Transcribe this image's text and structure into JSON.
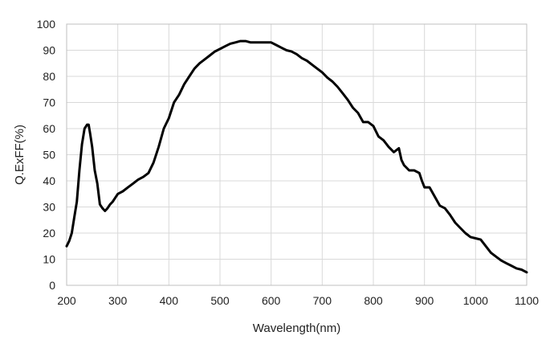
{
  "chart_data": {
    "type": "line",
    "title": "",
    "xlabel": "Wavelength(nm)",
    "ylabel": "Q.ExFF(%)",
    "xlim": [
      200,
      1100
    ],
    "ylim": [
      0,
      100
    ],
    "x_ticks": [
      200,
      300,
      400,
      500,
      600,
      700,
      800,
      900,
      1000,
      1100
    ],
    "y_ticks": [
      0,
      10,
      20,
      30,
      40,
      50,
      60,
      70,
      80,
      90,
      100
    ],
    "grid": true,
    "legend": "none",
    "series": [
      {
        "color": "#000000",
        "x": [
          200,
          205,
          210,
          215,
          220,
          225,
          230,
          235,
          240,
          243,
          246,
          250,
          255,
          260,
          265,
          270,
          275,
          280,
          285,
          290,
          300,
          310,
          320,
          330,
          340,
          350,
          360,
          370,
          380,
          390,
          400,
          410,
          420,
          430,
          440,
          450,
          460,
          470,
          480,
          490,
          500,
          510,
          520,
          530,
          540,
          550,
          560,
          570,
          580,
          590,
          600,
          610,
          620,
          630,
          640,
          650,
          660,
          670,
          680,
          690,
          700,
          710,
          720,
          730,
          740,
          750,
          760,
          770,
          780,
          790,
          800,
          810,
          820,
          830,
          840,
          850,
          855,
          860,
          870,
          880,
          890,
          895,
          900,
          910,
          920,
          930,
          940,
          950,
          960,
          970,
          980,
          990,
          1000,
          1010,
          1020,
          1030,
          1040,
          1050,
          1060,
          1070,
          1080,
          1090,
          1100
        ],
        "y": [
          15,
          17,
          20,
          26,
          32,
          44,
          54,
          60,
          61.5,
          61.5,
          58,
          53,
          44,
          39,
          31,
          29.5,
          28.5,
          29.5,
          31,
          32,
          35,
          36,
          37.5,
          39,
          40.5,
          41.5,
          43,
          47,
          53,
          60,
          64,
          70,
          73,
          77,
          80,
          83,
          85,
          86.5,
          88,
          89.5,
          90.5,
          91.5,
          92.5,
          93,
          93.5,
          93.5,
          93,
          93,
          93,
          93,
          93,
          92,
          91,
          90,
          89.5,
          88.5,
          87,
          86,
          84.5,
          83,
          81.5,
          79.5,
          78,
          76,
          73.5,
          71,
          68,
          66,
          62.5,
          62.5,
          61,
          57,
          55.5,
          53,
          51,
          52.5,
          48,
          46,
          44,
          44,
          43,
          40,
          37.5,
          37.5,
          34,
          30.5,
          29.5,
          27,
          24,
          22,
          20,
          18.5,
          18,
          17.5,
          15,
          12.5,
          11,
          9.5,
          8.5,
          7.5,
          6.5,
          6,
          5
        ]
      }
    ]
  }
}
